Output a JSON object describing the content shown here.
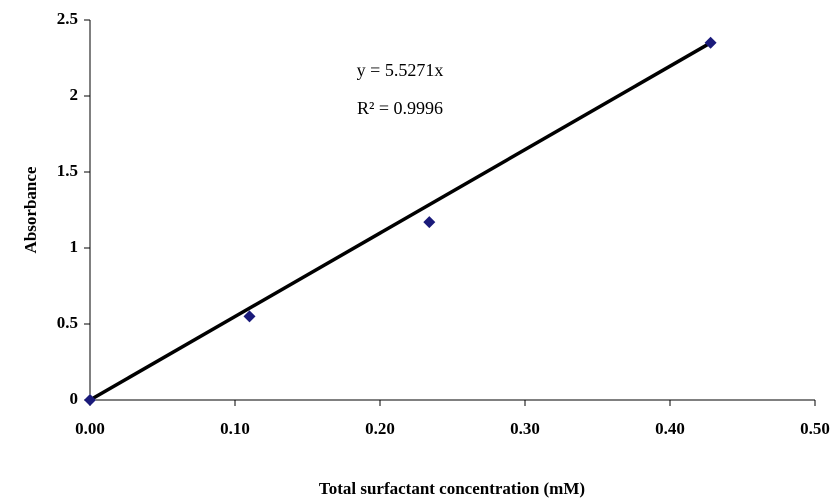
{
  "chart_data": {
    "type": "scatter",
    "x_label": "Total surfactant concentration (mM)",
    "y_label": "Absorbance",
    "x": [
      0,
      0.11,
      0.234,
      0.428
    ],
    "values": [
      0,
      0.55,
      1.17,
      2.35
    ],
    "color": "#1a1a7a",
    "trendline": {
      "equation": "y = 5.5271x",
      "r_squared": "R² = 0.9996",
      "color": "#000000"
    },
    "xlim": [
      0,
      0.5
    ],
    "xticks": [
      {
        "value": 0,
        "label": "0.00"
      },
      {
        "value": 0.1,
        "label": "0.10"
      },
      {
        "value": 0.2,
        "label": "0.20"
      },
      {
        "value": 0.3,
        "label": "0.30"
      },
      {
        "value": 0.4,
        "label": "0.40"
      },
      {
        "value": 0.5,
        "label": "0.50"
      }
    ],
    "ylim": [
      0,
      2.5
    ],
    "yticks": [
      0,
      0.5,
      1,
      1.5,
      2,
      2.5
    ]
  }
}
